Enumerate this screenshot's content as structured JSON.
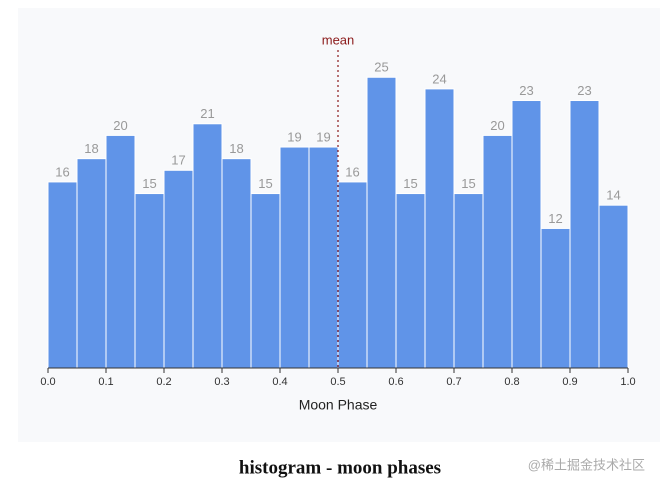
{
  "chart_data": {
    "type": "histogram",
    "caption": "histogram - moon phases",
    "watermark": "@稀土掘金技术社区",
    "xlabel": "Moon Phase",
    "bins": [
      0,
      0.05,
      0.1,
      0.15,
      0.2,
      0.25,
      0.3,
      0.35,
      0.4,
      0.45,
      0.5,
      0.55,
      0.6,
      0.65,
      0.7,
      0.75,
      0.8,
      0.85,
      0.9,
      0.95,
      1
    ],
    "values": [
      16,
      18,
      20,
      15,
      17,
      21,
      18,
      15,
      19,
      19,
      16,
      25,
      15,
      24,
      15,
      20,
      23,
      12,
      23,
      14
    ],
    "color": "#6094e8",
    "xlim": [
      0,
      1
    ],
    "ylim": [
      0,
      27
    ],
    "xticks": [
      {
        "value": 0,
        "label": "0.0"
      },
      0.1,
      0.2,
      0.3,
      0.4,
      0.5,
      0.6,
      0.7,
      0.8,
      0.9,
      {
        "value": 1,
        "label": "1.0"
      }
    ],
    "mean": {
      "value": 0.5,
      "label": "mean",
      "color": "#8b1a1a"
    }
  }
}
